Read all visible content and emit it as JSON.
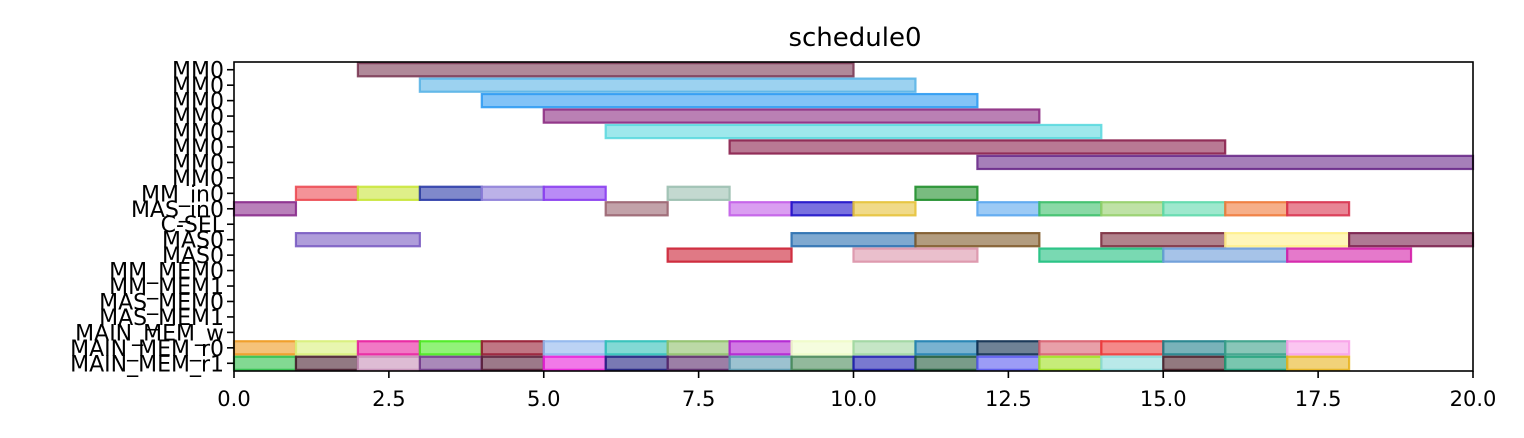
{
  "chart_data": {
    "type": "gantt",
    "title": "schedule0",
    "xlim": [
      0,
      20
    ],
    "x_ticks": [
      0,
      2.5,
      5,
      7.5,
      10,
      12.5,
      15,
      17.5,
      20
    ],
    "x_tick_labels": [
      "0.0",
      "2.5",
      "5.0",
      "7.5",
      "10.0",
      "12.5",
      "15.0",
      "17.5",
      "20.0"
    ],
    "grid": false,
    "legend": "none",
    "rows": [
      "MM0",
      "MM0",
      "MM0",
      "MM0",
      "MM0",
      "MM0",
      "MM0",
      "MM0",
      "MM_in0",
      "MAS_in0",
      "C-SEL",
      "MAS0",
      "MAS0",
      "MM_MEM0",
      "MM_MEM1",
      "MAS_MEM0",
      "MAS_MEM1",
      "MAIN_MEM_w",
      "MAIN_MEM_r0",
      "MAIN_MEM_r1"
    ],
    "tasks": [
      {
        "row": 0,
        "start": 2,
        "end": 10,
        "color": "#7b3a55"
      },
      {
        "row": 1,
        "start": 3,
        "end": 11,
        "color": "#5ab4e6"
      },
      {
        "row": 2,
        "start": 4,
        "end": 12,
        "color": "#2f9bf2"
      },
      {
        "row": 3,
        "start": 5,
        "end": 13,
        "color": "#8c2b82"
      },
      {
        "row": 4,
        "start": 6,
        "end": 14,
        "color": "#5dd9df"
      },
      {
        "row": 5,
        "start": 8,
        "end": 16,
        "color": "#8a1f4d"
      },
      {
        "row": 6,
        "start": 12,
        "end": 20,
        "color": "#6a2a8a"
      },
      {
        "row": 8,
        "start": 1,
        "end": 2,
        "color": "#ec4b53"
      },
      {
        "row": 8,
        "start": 2,
        "end": 3,
        "color": "#c9e53a"
      },
      {
        "row": 8,
        "start": 3,
        "end": 4,
        "color": "#2b3ba8"
      },
      {
        "row": 8,
        "start": 4,
        "end": 5,
        "color": "#8f7fd9"
      },
      {
        "row": 8,
        "start": 5,
        "end": 6,
        "color": "#8a3df0"
      },
      {
        "row": 8,
        "start": 7,
        "end": 8,
        "color": "#9bbfb0"
      },
      {
        "row": 8,
        "start": 11,
        "end": 12,
        "color": "#1f8f2b"
      },
      {
        "row": 9,
        "start": 0,
        "end": 1,
        "color": "#8a2b8c"
      },
      {
        "row": 9,
        "start": 6,
        "end": 7,
        "color": "#9a6470"
      },
      {
        "row": 9,
        "start": 8,
        "end": 9,
        "color": "#c25de8"
      },
      {
        "row": 9,
        "start": 9,
        "end": 10,
        "color": "#1f12c9"
      },
      {
        "row": 9,
        "start": 10,
        "end": 11,
        "color": "#e6c23a"
      },
      {
        "row": 9,
        "start": 12,
        "end": 13,
        "color": "#5aa6ef"
      },
      {
        "row": 9,
        "start": 13,
        "end": 14,
        "color": "#3cbf6a"
      },
      {
        "row": 9,
        "start": 14,
        "end": 15,
        "color": "#95cf6a"
      },
      {
        "row": 9,
        "start": 15,
        "end": 16,
        "color": "#5dd9ab"
      },
      {
        "row": 9,
        "start": 16,
        "end": 17,
        "color": "#f07a3a"
      },
      {
        "row": 9,
        "start": 17,
        "end": 18,
        "color": "#d8334f"
      },
      {
        "row": 11,
        "start": 1,
        "end": 3,
        "color": "#7a5cc2"
      },
      {
        "row": 11,
        "start": 9,
        "end": 11,
        "color": "#2a6fb0"
      },
      {
        "row": 11,
        "start": 11,
        "end": 13,
        "color": "#7f5a2a"
      },
      {
        "row": 11,
        "start": 14,
        "end": 16,
        "color": "#7d3040"
      },
      {
        "row": 11,
        "start": 16,
        "end": 18,
        "color": "#fff08a"
      },
      {
        "row": 11,
        "start": 18,
        "end": 20,
        "color": "#7a1f4d"
      },
      {
        "row": 12,
        "start": 7,
        "end": 9,
        "color": "#cc2033"
      },
      {
        "row": 12,
        "start": 10,
        "end": 12,
        "color": "#dc94aa"
      },
      {
        "row": 12,
        "start": 13,
        "end": 15,
        "color": "#1fc07f"
      },
      {
        "row": 12,
        "start": 15,
        "end": 17,
        "color": "#6a9bd8"
      },
      {
        "row": 12,
        "start": 17,
        "end": 19,
        "color": "#d41fa8"
      },
      {
        "row": 18,
        "start": 0,
        "end": 1,
        "color": "#ee9a1f"
      },
      {
        "row": 18,
        "start": 1,
        "end": 2,
        "color": "#d8f07a"
      },
      {
        "row": 18,
        "start": 2,
        "end": 3,
        "color": "#e8209e"
      },
      {
        "row": 18,
        "start": 3,
        "end": 4,
        "color": "#4aea1f"
      },
      {
        "row": 18,
        "start": 4,
        "end": 5,
        "color": "#961a32"
      },
      {
        "row": 18,
        "start": 5,
        "end": 6,
        "color": "#8fb6ec"
      },
      {
        "row": 18,
        "start": 6,
        "end": 7,
        "color": "#2fc0b8"
      },
      {
        "row": 18,
        "start": 7,
        "end": 8,
        "color": "#8fc06a"
      },
      {
        "row": 18,
        "start": 8,
        "end": 9,
        "color": "#b01fd0"
      },
      {
        "row": 18,
        "start": 9,
        "end": 10,
        "color": "#eefcc8"
      },
      {
        "row": 18,
        "start": 10,
        "end": 11,
        "color": "#9ed6a0"
      },
      {
        "row": 18,
        "start": 11,
        "end": 12,
        "color": "#1f7fb0"
      },
      {
        "row": 18,
        "start": 12,
        "end": 13,
        "color": "#0f2f50"
      },
      {
        "row": 18,
        "start": 13,
        "end": 14,
        "color": "#d86070"
      },
      {
        "row": 18,
        "start": 14,
        "end": 15,
        "color": "#ec3a3a"
      },
      {
        "row": 18,
        "start": 15,
        "end": 16,
        "color": "#1f7f8a"
      },
      {
        "row": 18,
        "start": 16,
        "end": 17,
        "color": "#3aa088"
      },
      {
        "row": 18,
        "start": 17,
        "end": 18,
        "color": "#f8a0e8"
      },
      {
        "row": 19,
        "start": 0,
        "end": 1,
        "color": "#2fbf4a"
      },
      {
        "row": 19,
        "start": 1,
        "end": 2,
        "color": "#4a1f30"
      },
      {
        "row": 19,
        "start": 2,
        "end": 3,
        "color": "#c890b8"
      },
      {
        "row": 19,
        "start": 3,
        "end": 4,
        "color": "#703a8a"
      },
      {
        "row": 19,
        "start": 4,
        "end": 5,
        "color": "#5a1f3a"
      },
      {
        "row": 19,
        "start": 5,
        "end": 6,
        "color": "#e81fd8"
      },
      {
        "row": 19,
        "start": 6,
        "end": 7,
        "color": "#1f1f80"
      },
      {
        "row": 19,
        "start": 7,
        "end": 8,
        "color": "#5a2a6a"
      },
      {
        "row": 19,
        "start": 8,
        "end": 9,
        "color": "#5a9ab0"
      },
      {
        "row": 19,
        "start": 9,
        "end": 10,
        "color": "#4a8a5a"
      },
      {
        "row": 19,
        "start": 10,
        "end": 11,
        "color": "#1f1fb0"
      },
      {
        "row": 19,
        "start": 11,
        "end": 12,
        "color": "#1f5a3a"
      },
      {
        "row": 19,
        "start": 12,
        "end": 13,
        "color": "#5a5af0"
      },
      {
        "row": 19,
        "start": 13,
        "end": 14,
        "color": "#a0e01f"
      },
      {
        "row": 19,
        "start": 14,
        "end": 15,
        "color": "#8adada"
      },
      {
        "row": 19,
        "start": 15,
        "end": 16,
        "color": "#4a1f2a"
      },
      {
        "row": 19,
        "start": 16,
        "end": 17,
        "color": "#1fa07a"
      },
      {
        "row": 19,
        "start": 17,
        "end": 18,
        "color": "#e8b41f"
      }
    ]
  }
}
